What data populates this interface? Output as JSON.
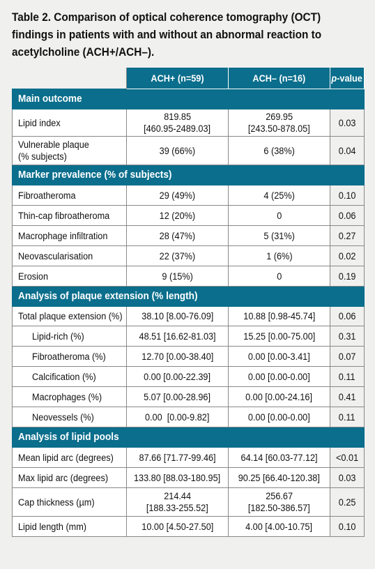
{
  "caption": [
    "Table 2. Comparison of optical coherence tomography (OCT)",
    "findings in patients with and without an abnormal reaction to",
    "acetylcholine (ACH+/ACH–)."
  ],
  "headers": {
    "col1": "ACH+ (n=59)",
    "col2": "ACH– (n=16)",
    "col3_italic": "p",
    "col3_rest": "-value"
  },
  "sections": [
    {
      "title": "Main outcome",
      "rows": [
        {
          "label": [
            "Lipid index"
          ],
          "ach_plus": [
            "819.85",
            "[460.95-2489.03]"
          ],
          "ach_minus": [
            "269.95",
            "[243.50-878.05]"
          ],
          "p": "0.03",
          "indent": false
        },
        {
          "label": [
            "Vulnerable plaque",
            "(% subjects)"
          ],
          "ach_plus": [
            "39 (66%)"
          ],
          "ach_minus": [
            "6 (38%)"
          ],
          "p": "0.04",
          "indent": false
        }
      ]
    },
    {
      "title": "Marker prevalence (% of subjects)",
      "rows": [
        {
          "label": [
            "Fibroatheroma"
          ],
          "ach_plus": [
            "29 (49%)"
          ],
          "ach_minus": [
            "4 (25%)"
          ],
          "p": "0.10",
          "indent": false
        },
        {
          "label": [
            "Thin-cap fibroatheroma"
          ],
          "ach_plus": [
            "12 (20%)"
          ],
          "ach_minus": [
            "0"
          ],
          "p": "0.06",
          "indent": false
        },
        {
          "label": [
            "Macrophage infiltration"
          ],
          "ach_plus": [
            "28 (47%)"
          ],
          "ach_minus": [
            "5 (31%)"
          ],
          "p": "0.27",
          "indent": false
        },
        {
          "label": [
            "Neovascularisation"
          ],
          "ach_plus": [
            "22 (37%)"
          ],
          "ach_minus": [
            "1 (6%)"
          ],
          "p": "0.02",
          "indent": false
        },
        {
          "label": [
            "Erosion"
          ],
          "ach_plus": [
            "9 (15%)"
          ],
          "ach_minus": [
            "0"
          ],
          "p": "0.19",
          "indent": false
        }
      ]
    },
    {
      "title": "Analysis of plaque extension (% length)",
      "rows": [
        {
          "label": [
            "Total plaque extension (%)"
          ],
          "ach_plus": [
            "38.10 [8.00-76.09]"
          ],
          "ach_minus": [
            "10.88 [0.98-45.74]"
          ],
          "p": "0.06",
          "indent": false
        },
        {
          "label": [
            "Lipid-rich (%)"
          ],
          "ach_plus": [
            "48.51 [16.62-81.03]"
          ],
          "ach_minus": [
            "15.25 [0.00-75.00]"
          ],
          "p": "0.31",
          "indent": true
        },
        {
          "label": [
            "Fibroatheroma (%)"
          ],
          "ach_plus": [
            "12.70 [0.00-38.40]"
          ],
          "ach_minus": [
            "0.00 [0.00-3.41]"
          ],
          "p": "0.07",
          "indent": true
        },
        {
          "label": [
            "Calcification (%)"
          ],
          "ach_plus": [
            "0.00 [0.00-22.39]"
          ],
          "ach_minus": [
            "0.00 [0.00-0.00]"
          ],
          "p": "0.11",
          "indent": true
        },
        {
          "label": [
            "Macrophages (%)"
          ],
          "ach_plus": [
            "5.07 [0.00-28.96]"
          ],
          "ach_minus": [
            "0.00 [0.00-24.16]"
          ],
          "p": "0.41",
          "indent": true
        },
        {
          "label": [
            "Neovessels (%)"
          ],
          "ach_plus": [
            "0.00  [0.00-9.82]"
          ],
          "ach_minus": [
            "0.00 [0.00-0.00]"
          ],
          "p": "0.11",
          "indent": true
        }
      ]
    },
    {
      "title": "Analysis of lipid pools",
      "rows": [
        {
          "label": [
            "Mean lipid arc (degrees)"
          ],
          "ach_plus": [
            "87.66 [71.77-99.46]"
          ],
          "ach_minus": [
            "64.14 [60.03-77.12]"
          ],
          "p": "<0.01",
          "indent": false
        },
        {
          "label": [
            "Max lipid arc (degrees)"
          ],
          "ach_plus": [
            "133.80 [88.03-180.95]"
          ],
          "ach_minus": [
            "90.25 [66.40-120.38]"
          ],
          "p": "0.03",
          "indent": false
        },
        {
          "label": [
            "Cap thickness (µm)"
          ],
          "ach_plus": [
            "214.44",
            "[188.33-255.52]"
          ],
          "ach_minus": [
            "256.67",
            "[182.50-386.57]"
          ],
          "p": "0.25",
          "indent": false
        },
        {
          "label": [
            "Lipid length (mm)"
          ],
          "ach_plus": [
            "10.00 [4.50-27.50]"
          ],
          "ach_minus": [
            "4.00 [4.00-10.75]"
          ],
          "p": "0.10",
          "indent": false
        }
      ]
    }
  ]
}
